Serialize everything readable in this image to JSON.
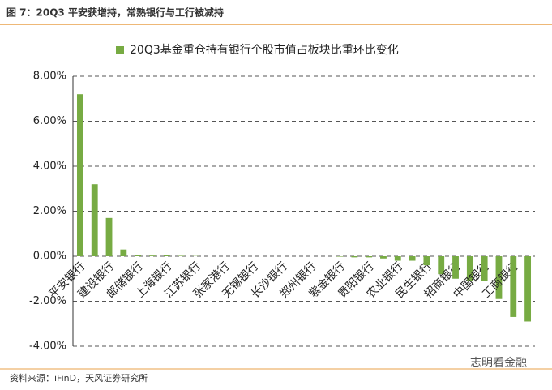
{
  "header": {
    "title": "图 7：20Q3 平安获增持，常熟银行与工行被减持"
  },
  "chart_data": {
    "type": "bar",
    "categories": [
      "平安银行",
      null,
      "建设银行",
      null,
      "邮储银行",
      null,
      "上海银行",
      null,
      "江苏银行",
      null,
      "张家港行",
      null,
      "无锡银行",
      null,
      "长沙银行",
      null,
      "郑州银行",
      null,
      "紫金银行",
      null,
      "贵阳银行",
      null,
      "农业银行",
      null,
      "民生银行",
      null,
      "招商银行",
      null,
      "中国银行",
      null,
      "工商银行",
      null
    ],
    "series": [
      {
        "name": "20Q3基金重仓持有银行个股市值占板块比重环比变化",
        "color": "#77ab43",
        "values": [
          7.2,
          3.2,
          1.7,
          0.3,
          0.05,
          0.03,
          0.05,
          0.02,
          0.01,
          0,
          0,
          0,
          0,
          0,
          0,
          0,
          0,
          0,
          -0.02,
          -0.05,
          -0.05,
          -0.1,
          -0.2,
          -0.2,
          -0.4,
          -0.8,
          -1.0,
          -1.1,
          -1.1,
          -1.9,
          -2.7,
          -2.9
        ]
      }
    ],
    "ylim": [
      -4,
      8
    ],
    "yticks": [
      {
        "value": -4,
        "label": "-4.00%"
      },
      {
        "value": -2,
        "label": "-2.00%"
      },
      {
        "value": 0,
        "label": "0.00%"
      },
      {
        "value": 2,
        "label": "2.00%"
      },
      {
        "value": 4,
        "label": "4.00%"
      },
      {
        "value": 6,
        "label": "6.00%"
      },
      {
        "value": 8,
        "label": "8.00%"
      }
    ],
    "grid": true,
    "legend": "top"
  },
  "footer": {
    "source": "资料来源：iFinD，天风证券研究所",
    "watermark": "志明看金融"
  }
}
